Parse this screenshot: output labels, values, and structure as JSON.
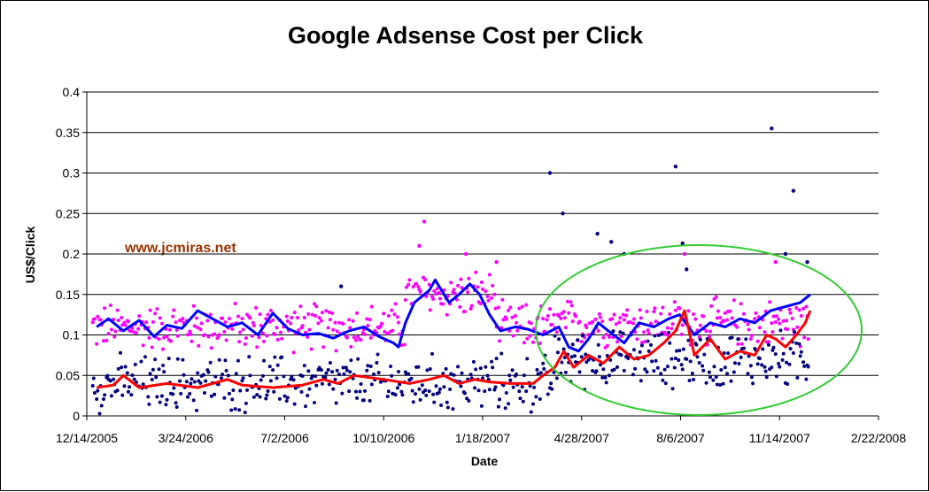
{
  "chart_data": {
    "type": "line",
    "title": "Google Adsense Cost per Click",
    "xlabel": "Date",
    "ylabel": "US$/Click",
    "x_axis_type": "date",
    "xlim": [
      "2005-12-14",
      "2008-02-22"
    ],
    "x_ticks": [
      "12/14/2005",
      "3/24/2006",
      "7/2/2006",
      "10/10/2006",
      "1/18/2007",
      "4/28/2007",
      "8/6/2007",
      "11/14/2007",
      "2/22/2008"
    ],
    "ylim": [
      0,
      0.4
    ],
    "y_ticks": [
      "0",
      "0.05",
      "0.1",
      "0.15",
      "0.2",
      "0.25",
      "0.3",
      "0.35",
      "0.4"
    ],
    "grid": "horizontal",
    "legend": "none",
    "annotation": "www.jcmiras.net",
    "highlight": "green ellipse around 4/2007 – 12/2007",
    "series": [
      {
        "style": "line",
        "color": "#0000ff",
        "points": [
          [
            "2005-12-24",
            0.11
          ],
          [
            "2006-01-05",
            0.12
          ],
          [
            "2006-01-20",
            0.105
          ],
          [
            "2006-02-05",
            0.118
          ],
          [
            "2006-02-20",
            0.098
          ],
          [
            "2006-03-05",
            0.112
          ],
          [
            "2006-03-20",
            0.108
          ],
          [
            "2006-04-05",
            0.13
          ],
          [
            "2006-04-20",
            0.12
          ],
          [
            "2006-05-05",
            0.11
          ],
          [
            "2006-05-20",
            0.115
          ],
          [
            "2006-06-05",
            0.1
          ],
          [
            "2006-06-20",
            0.127
          ],
          [
            "2006-07-05",
            0.108
          ],
          [
            "2006-07-20",
            0.1
          ],
          [
            "2006-08-05",
            0.102
          ],
          [
            "2006-08-20",
            0.096
          ],
          [
            "2006-09-05",
            0.105
          ],
          [
            "2006-09-20",
            0.11
          ],
          [
            "2006-10-05",
            0.098
          ],
          [
            "2006-10-20",
            0.09
          ],
          [
            "2006-10-25",
            0.085
          ],
          [
            "2006-11-01",
            0.115
          ],
          [
            "2006-11-10",
            0.14
          ],
          [
            "2006-11-25",
            0.155
          ],
          [
            "2006-12-01",
            0.168
          ],
          [
            "2006-12-15",
            0.14
          ],
          [
            "2006-12-25",
            0.15
          ],
          [
            "2007-01-05",
            0.163
          ],
          [
            "2007-01-15",
            0.15
          ],
          [
            "2007-01-25",
            0.125
          ],
          [
            "2007-02-05",
            0.105
          ],
          [
            "2007-02-20",
            0.11
          ],
          [
            "2007-03-05",
            0.107
          ],
          [
            "2007-03-20",
            0.1
          ],
          [
            "2007-04-05",
            0.11
          ],
          [
            "2007-04-15",
            0.085
          ],
          [
            "2007-04-25",
            0.08
          ],
          [
            "2007-05-05",
            0.095
          ],
          [
            "2007-05-15",
            0.115
          ],
          [
            "2007-05-25",
            0.105
          ],
          [
            "2007-06-10",
            0.09
          ],
          [
            "2007-06-25",
            0.115
          ],
          [
            "2007-07-10",
            0.11
          ],
          [
            "2007-07-25",
            0.12
          ],
          [
            "2007-08-05",
            0.125
          ],
          [
            "2007-08-20",
            0.1
          ],
          [
            "2007-09-05",
            0.115
          ],
          [
            "2007-09-20",
            0.11
          ],
          [
            "2007-10-05",
            0.12
          ],
          [
            "2007-10-20",
            0.115
          ],
          [
            "2007-11-05",
            0.13
          ],
          [
            "2007-11-20",
            0.135
          ],
          [
            "2007-12-05",
            0.14
          ],
          [
            "2007-12-15",
            0.15
          ]
        ]
      },
      {
        "style": "line",
        "color": "#ff0000",
        "points": [
          [
            "2005-12-24",
            0.035
          ],
          [
            "2006-01-10",
            0.038
          ],
          [
            "2006-01-20",
            0.05
          ],
          [
            "2006-02-05",
            0.035
          ],
          [
            "2006-03-05",
            0.04
          ],
          [
            "2006-04-05",
            0.035
          ],
          [
            "2006-05-05",
            0.045
          ],
          [
            "2006-05-20",
            0.038
          ],
          [
            "2006-06-20",
            0.035
          ],
          [
            "2006-07-20",
            0.038
          ],
          [
            "2006-08-10",
            0.045
          ],
          [
            "2006-08-25",
            0.04
          ],
          [
            "2006-09-10",
            0.05
          ],
          [
            "2006-10-10",
            0.045
          ],
          [
            "2006-11-05",
            0.04
          ],
          [
            "2006-11-25",
            0.045
          ],
          [
            "2006-12-10",
            0.05
          ],
          [
            "2006-12-25",
            0.04
          ],
          [
            "2007-01-10",
            0.045
          ],
          [
            "2007-01-25",
            0.042
          ],
          [
            "2007-02-15",
            0.04
          ],
          [
            "2007-03-10",
            0.04
          ],
          [
            "2007-03-20",
            0.05
          ],
          [
            "2007-04-01",
            0.06
          ],
          [
            "2007-04-10",
            0.08
          ],
          [
            "2007-04-20",
            0.06
          ],
          [
            "2007-05-05",
            0.075
          ],
          [
            "2007-05-20",
            0.065
          ],
          [
            "2007-06-05",
            0.085
          ],
          [
            "2007-06-20",
            0.07
          ],
          [
            "2007-07-05",
            0.075
          ],
          [
            "2007-07-20",
            0.09
          ],
          [
            "2007-08-01",
            0.105
          ],
          [
            "2007-08-10",
            0.13
          ],
          [
            "2007-08-20",
            0.075
          ],
          [
            "2007-09-05",
            0.095
          ],
          [
            "2007-09-20",
            0.07
          ],
          [
            "2007-10-05",
            0.08
          ],
          [
            "2007-10-20",
            0.075
          ],
          [
            "2007-11-01",
            0.1
          ],
          [
            "2007-11-10",
            0.095
          ],
          [
            "2007-11-20",
            0.085
          ],
          [
            "2007-12-01",
            0.1
          ],
          [
            "2007-12-10",
            0.115
          ],
          [
            "2007-12-15",
            0.13
          ]
        ]
      },
      {
        "style": "scatter",
        "color": "#ff00ff",
        "base": 0.11,
        "spread": 0.05,
        "points": [
          [
            "2006-11-15",
            0.21
          ],
          [
            "2006-11-20",
            0.24
          ],
          [
            "2007-01-01",
            0.2
          ],
          [
            "2007-02-01",
            0.19
          ],
          [
            "2007-08-10",
            0.2
          ],
          [
            "2007-11-10",
            0.19
          ]
        ]
      },
      {
        "style": "scatter",
        "color": "#000080",
        "base": 0.04,
        "spread": 0.06,
        "points": [
          [
            "2007-03-27",
            0.3
          ],
          [
            "2007-04-09",
            0.25
          ],
          [
            "2007-05-14",
            0.225
          ],
          [
            "2007-05-28",
            0.215
          ],
          [
            "2007-06-10",
            0.2
          ],
          [
            "2007-08-01",
            0.308
          ],
          [
            "2007-08-08",
            0.213
          ],
          [
            "2007-11-06",
            0.355
          ],
          [
            "2007-11-28",
            0.278
          ],
          [
            "2007-08-12",
            0.181
          ],
          [
            "2007-11-20",
            0.2
          ],
          [
            "2007-12-12",
            0.19
          ],
          [
            "2006-08-28",
            0.16
          ]
        ]
      }
    ]
  }
}
